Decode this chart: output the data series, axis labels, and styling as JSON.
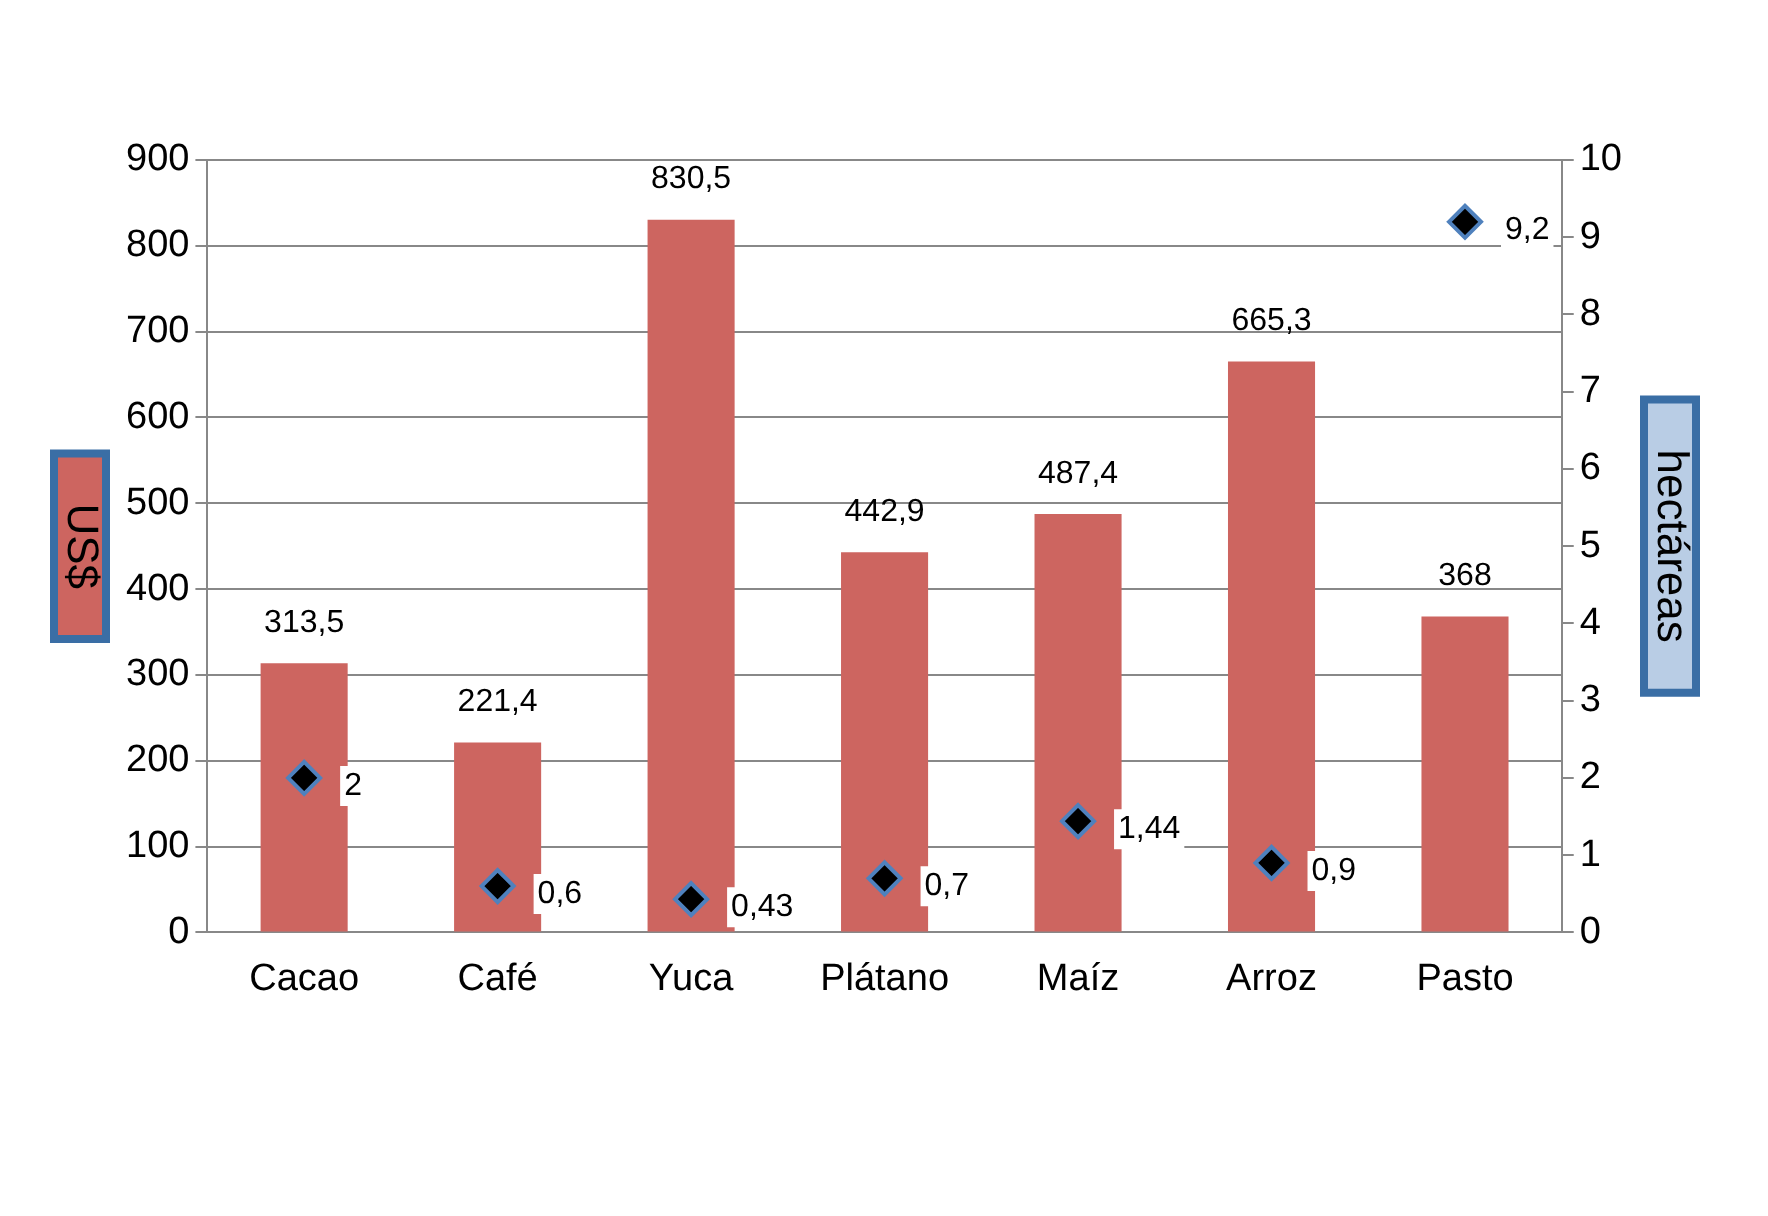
{
  "chart_data": {
    "type": "bar",
    "categories": [
      "Cacao",
      "Café",
      "Yuca",
      "Plátano",
      "Maíz",
      "Arroz",
      "Pasto"
    ],
    "series": [
      {
        "color": "#cd6560",
        "values": [
          313.5,
          221.4,
          830.5,
          442.9,
          487.4,
          665.3,
          368
        ],
        "value_labels": [
          "313,5",
          "221,4",
          "830,5",
          "442,9",
          "487,4",
          "665,3",
          "368"
        ]
      },
      {
        "type": "scatter",
        "axis": "y2",
        "color": "#000000",
        "marker": "diamond",
        "values": [
          2,
          0.6,
          0.43,
          0.7,
          1.44,
          0.9,
          9.2
        ],
        "value_labels": [
          "2",
          "0,6",
          "0,43",
          "0,7",
          "1,44",
          "0,9",
          "9,2"
        ]
      }
    ],
    "ylabel": "US$",
    "y2label": "hectáreas",
    "ylim": [
      0,
      900
    ],
    "yticks": [
      0,
      100,
      200,
      300,
      400,
      500,
      600,
      700,
      800,
      900
    ],
    "y2lim": [
      0,
      10
    ],
    "y2ticks": [
      0,
      1,
      2,
      3,
      4,
      5,
      6,
      7,
      8,
      9,
      10
    ],
    "grid": "y",
    "legend": false
  }
}
